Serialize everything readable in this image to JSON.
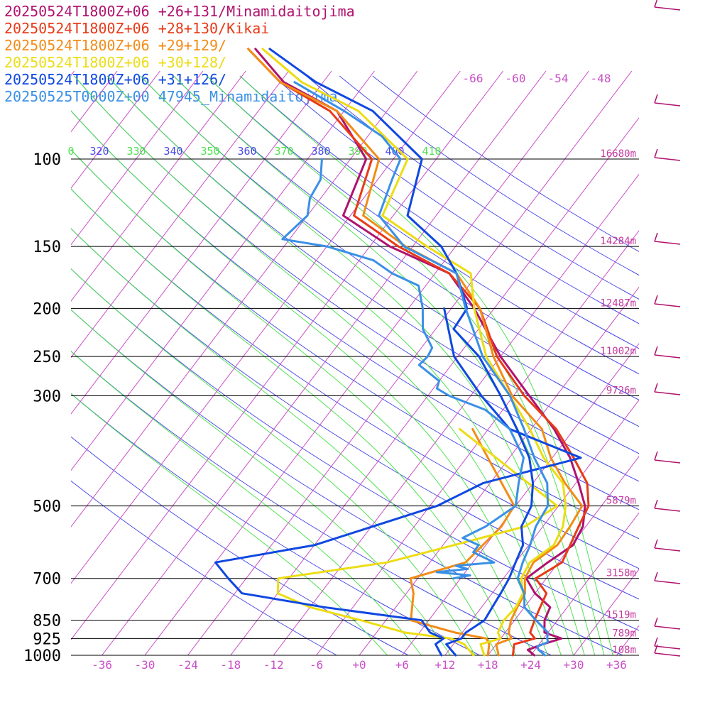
{
  "chart_data": {
    "type": "line",
    "subtype": "skew-t sounding",
    "legend": [
      {
        "text": "20250524T1800Z+06 +26+131/Minamidaitojima",
        "color": "#b0126e"
      },
      {
        "text": "20250524T1800Z+06 +28+130/Kikai",
        "color": "#e83a18"
      },
      {
        "text": "20250524T1800Z+06 +29+129/",
        "color": "#f28c17"
      },
      {
        "text": "20250524T1800Z+06 +30+128/",
        "color": "#ecdd14"
      },
      {
        "text": "20250524T1800Z+06 +31+126/",
        "color": "#1048e0"
      },
      {
        "text": "20250525T0000Z+00 47945_Minamidaitojima",
        "color": "#3a90e6"
      }
    ],
    "pressure_levels": [
      {
        "p": 100,
        "label": "100",
        "height": "16680m"
      },
      {
        "p": 150,
        "label": "150",
        "height": "14284m"
      },
      {
        "p": 200,
        "label": "200",
        "height": "12487m"
      },
      {
        "p": 250,
        "label": "250",
        "height": "11002m"
      },
      {
        "p": 300,
        "label": "300",
        "height": "9726m"
      },
      {
        "p": 500,
        "label": "500",
        "height": "5879m"
      },
      {
        "p": 700,
        "label": "700",
        "height": "3158m"
      },
      {
        "p": 850,
        "label": "850",
        "height": "1519m"
      },
      {
        "p": 925,
        "label": "925",
        "height": "789m"
      },
      {
        "p": 1000,
        "label": "1000",
        "height": "108m"
      }
    ],
    "temperature_ticks": [
      "-36",
      "-30",
      "-24",
      "-18",
      "-12",
      "-6",
      "+0",
      "+6",
      "+12",
      "+18",
      "+24",
      "+30",
      "+36"
    ],
    "upper_temperature_labels": [
      "-66",
      "-60",
      "-54",
      "-48"
    ],
    "theta_labels": [
      "0",
      "320",
      "330",
      "340",
      "350",
      "360",
      "370",
      "380",
      "390",
      "400",
      "410"
    ],
    "xlim": [
      -40,
      40
    ],
    "ylim": [
      1000,
      100
    ],
    "yscale": "log",
    "series": [
      {
        "name": "Minamidaitojima",
        "color": "#b0126e",
        "kind": "temperature",
        "points": [
          [
            1000,
            24.5
          ],
          [
            975,
            23
          ],
          [
            950,
            24.5
          ],
          [
            925,
            26.5
          ],
          [
            900,
            23.5
          ],
          [
            850,
            22.2
          ],
          [
            800,
            21.6
          ],
          [
            750,
            18
          ],
          [
            700,
            15.2
          ],
          [
            650,
            16.5
          ],
          [
            600,
            18.2
          ],
          [
            550,
            17.6
          ],
          [
            500,
            15.7
          ],
          [
            450,
            12.4
          ],
          [
            400,
            8.5
          ],
          [
            350,
            3.2
          ],
          [
            300,
            -3.8
          ],
          [
            250,
            -12
          ],
          [
            200,
            -20.8
          ],
          [
            170,
            -28
          ],
          [
            150,
            -39.2
          ],
          [
            130,
            -49
          ],
          [
            100,
            -51.8
          ],
          [
            80,
            -61
          ],
          [
            70,
            -71.5
          ],
          [
            60,
            -79
          ]
        ]
      },
      {
        "name": "Kikai",
        "color": "#e83a18",
        "kind": "temperature",
        "points": [
          [
            1000,
            21.5
          ],
          [
            950,
            20.5
          ],
          [
            925,
            22.8
          ],
          [
            900,
            21.5
          ],
          [
            850,
            20.8
          ],
          [
            800,
            20.2
          ],
          [
            750,
            19.6
          ],
          [
            700,
            16.5
          ],
          [
            650,
            18.5
          ],
          [
            600,
            17.8
          ],
          [
            550,
            17
          ],
          [
            500,
            16.2
          ],
          [
            450,
            13.6
          ],
          [
            400,
            9
          ],
          [
            350,
            3.5
          ],
          [
            300,
            -4.5
          ],
          [
            250,
            -12.5
          ],
          [
            200,
            -20
          ],
          [
            170,
            -28
          ],
          [
            150,
            -38
          ],
          [
            130,
            -47.5
          ],
          [
            100,
            -51
          ],
          [
            80,
            -62
          ],
          [
            70,
            -72
          ],
          [
            60,
            -80
          ]
        ]
      },
      {
        "name": "+29+129",
        "color": "#f28c17",
        "kind": "temperature",
        "points": [
          [
            1000,
            19.5
          ],
          [
            950,
            18
          ],
          [
            925,
            19.5
          ],
          [
            900,
            18.5
          ],
          [
            850,
            17.5
          ],
          [
            800,
            17
          ],
          [
            750,
            16.6
          ],
          [
            700,
            15
          ],
          [
            650,
            14.5
          ],
          [
            600,
            16
          ],
          [
            550,
            15.8
          ],
          [
            500,
            15.3
          ],
          [
            450,
            10.5
          ],
          [
            400,
            5.8
          ],
          [
            350,
            1.5
          ],
          [
            300,
            -6.2
          ],
          [
            250,
            -13
          ],
          [
            200,
            -20
          ],
          [
            170,
            -27
          ],
          [
            150,
            -37
          ],
          [
            130,
            -46.2
          ],
          [
            100,
            -50
          ],
          [
            80,
            -61
          ],
          [
            70,
            -72
          ],
          [
            60,
            -80
          ]
        ]
      },
      {
        "name": "+29+129",
        "color": "#f28c17",
        "kind": "dewpoint",
        "points": [
          [
            1000,
            18
          ],
          [
            950,
            17
          ],
          [
            925,
            16
          ],
          [
            900,
            11
          ],
          [
            850,
            3.5
          ],
          [
            750,
            1
          ],
          [
            700,
            -1
          ],
          [
            650,
            5
          ],
          [
            550,
            6.2
          ],
          [
            500,
            5.8
          ],
          [
            400,
            -3
          ],
          [
            350,
            -8.2
          ]
        ]
      },
      {
        "name": "+30+128",
        "color": "#ecdd14",
        "kind": "temperature",
        "points": [
          [
            1000,
            17.5
          ],
          [
            950,
            15.8
          ],
          [
            925,
            18
          ],
          [
            900,
            17
          ],
          [
            850,
            16.5
          ],
          [
            800,
            16.8
          ],
          [
            750,
            16.3
          ],
          [
            700,
            14.5
          ],
          [
            650,
            14
          ],
          [
            600,
            15.5
          ],
          [
            550,
            14.8
          ],
          [
            500,
            13
          ],
          [
            450,
            10.2
          ],
          [
            400,
            4.8
          ],
          [
            350,
            -0.2
          ],
          [
            300,
            -6.5
          ],
          [
            250,
            -14
          ],
          [
            200,
            -20.8
          ],
          [
            170,
            -25
          ],
          [
            150,
            -34
          ],
          [
            130,
            -43.5
          ],
          [
            100,
            -46
          ],
          [
            80,
            -58
          ],
          [
            70,
            -69
          ],
          [
            60,
            -78
          ]
        ]
      },
      {
        "name": "+30+128",
        "color": "#ecdd14",
        "kind": "dewpoint",
        "points": [
          [
            1000,
            16
          ],
          [
            950,
            13.5
          ],
          [
            925,
            11
          ],
          [
            900,
            4
          ],
          [
            850,
            -3.5
          ],
          [
            800,
            -12
          ],
          [
            750,
            -18
          ],
          [
            700,
            -19.5
          ],
          [
            650,
            -6
          ],
          [
            600,
            1.5
          ],
          [
            550,
            9.5
          ],
          [
            500,
            11.8
          ],
          [
            350,
            -10
          ]
        ]
      },
      {
        "name": "+31+126",
        "color": "#1048e0",
        "kind": "temperature",
        "points": [
          [
            1000,
            13.5
          ],
          [
            950,
            11
          ],
          [
            925,
            12.5
          ],
          [
            900,
            12.5
          ],
          [
            850,
            13.8
          ],
          [
            800,
            13.5
          ],
          [
            750,
            13.2
          ],
          [
            700,
            12.8
          ],
          [
            650,
            12
          ],
          [
            600,
            11.2
          ],
          [
            550,
            9
          ],
          [
            500,
            8.2
          ],
          [
            450,
            6
          ],
          [
            400,
            2.8
          ],
          [
            350,
            -2
          ],
          [
            300,
            -7.8
          ],
          [
            250,
            -15
          ],
          [
            220,
            -21.5
          ],
          [
            200,
            -21.8
          ],
          [
            170,
            -27
          ],
          [
            150,
            -32
          ],
          [
            130,
            -40
          ],
          [
            100,
            -44
          ],
          [
            80,
            -56
          ],
          [
            70,
            -67
          ],
          [
            60,
            -77
          ]
        ]
      },
      {
        "name": "+31+126",
        "color": "#1048e0",
        "kind": "dewpoint",
        "points": [
          [
            1000,
            11.5
          ],
          [
            950,
            9.5
          ],
          [
            925,
            10
          ],
          [
            900,
            7.5
          ],
          [
            850,
            5
          ],
          [
            800,
            -10
          ],
          [
            750,
            -23
          ],
          [
            700,
            -26.5
          ],
          [
            650,
            -30
          ],
          [
            600,
            -18
          ],
          [
            500,
            -5
          ],
          [
            450,
            -1
          ],
          [
            400,
            10
          ],
          [
            350,
            -3
          ],
          [
            300,
            -10.5
          ],
          [
            250,
            -18.5
          ],
          [
            200,
            -25
          ]
        ]
      },
      {
        "name": "47945_Minamidaitojima",
        "color": "#3a90e6",
        "kind": "temperature",
        "points": [
          [
            1000,
            26
          ],
          [
            975,
            24.5
          ],
          [
            960,
            24
          ],
          [
            940,
            25
          ],
          [
            925,
            24.5
          ],
          [
            900,
            24
          ],
          [
            850,
            21
          ],
          [
            800,
            18
          ],
          [
            750,
            16.5
          ],
          [
            700,
            14
          ],
          [
            650,
            13
          ],
          [
            600,
            12.2
          ],
          [
            550,
            11
          ],
          [
            500,
            10.5
          ],
          [
            450,
            8
          ],
          [
            400,
            3.5
          ],
          [
            350,
            -1
          ],
          [
            300,
            -6.5
          ],
          [
            250,
            -14.5
          ],
          [
            200,
            -22
          ],
          [
            170,
            -27
          ],
          [
            150,
            -37.2
          ],
          [
            130,
            -44
          ],
          [
            110,
            -46
          ],
          [
            100,
            -47
          ],
          [
            90,
            -52
          ],
          [
            80,
            -60
          ],
          [
            70,
            -70
          ]
        ]
      },
      {
        "name": "47945_Minamidaitojima",
        "color": "#3a90e6",
        "kind": "dewpoint",
        "points": [
          [
            700,
            5
          ],
          [
            690,
            7
          ],
          [
            680,
            2
          ],
          [
            670,
            6
          ],
          [
            660,
            4
          ],
          [
            650,
            9
          ],
          [
            620,
            5
          ],
          [
            600,
            5
          ],
          [
            580,
            2
          ],
          [
            550,
            4
          ],
          [
            500,
            6
          ],
          [
            450,
            4
          ],
          [
            400,
            2
          ],
          [
            350,
            -3
          ],
          [
            320,
            -8.5
          ],
          [
            300,
            -15
          ],
          [
            290,
            -17.5
          ],
          [
            280,
            -18
          ],
          [
            260,
            -22.5
          ],
          [
            250,
            -22.2
          ],
          [
            240,
            -22.5
          ],
          [
            220,
            -25.8
          ],
          [
            200,
            -28
          ],
          [
            180,
            -31
          ],
          [
            170,
            -36
          ],
          [
            160,
            -40
          ],
          [
            150,
            -48
          ],
          [
            145,
            -55
          ],
          [
            130,
            -54
          ],
          [
            120,
            -55.5
          ],
          [
            110,
            -56
          ],
          [
            100,
            -58
          ]
        ]
      }
    ]
  }
}
